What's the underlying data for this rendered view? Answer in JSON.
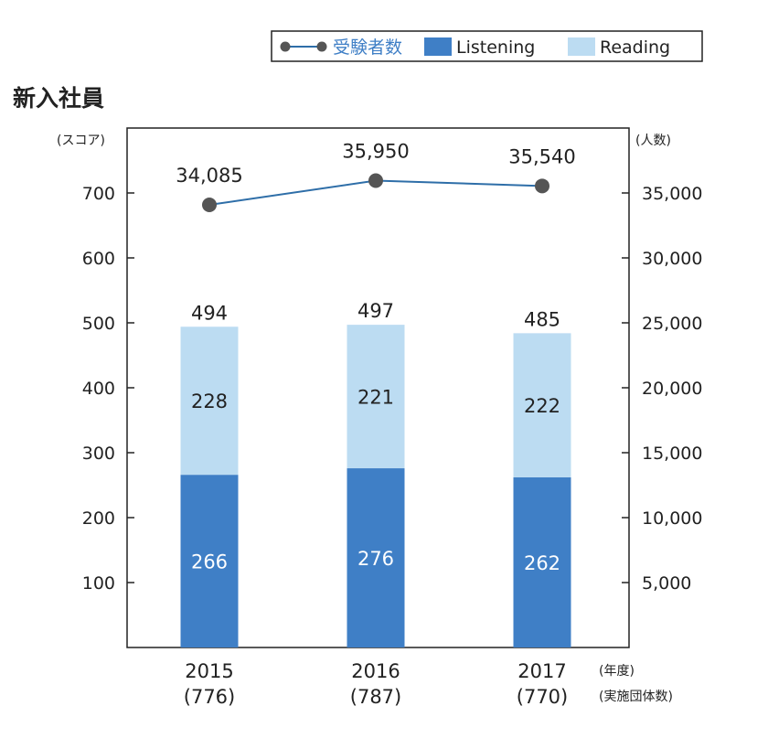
{
  "chart_data": {
    "type": "bar",
    "title": "新入社員",
    "left_axis_unit": "(スコア)",
    "right_axis_unit": "(人数)",
    "x_unit_line1": "(年度)",
    "x_unit_line2": "(実施団体数)",
    "categories": [
      "2015",
      "2016",
      "2017"
    ],
    "category_sublabels": [
      "(776)",
      "(787)",
      "(770)"
    ],
    "ylim": [
      0,
      800
    ],
    "y_ticks": [
      100,
      200,
      300,
      400,
      500,
      600,
      700
    ],
    "y_tick_labels": [
      "100",
      "200",
      "300",
      "400",
      "500",
      "600",
      "700"
    ],
    "y2lim": [
      0,
      40000
    ],
    "y2_ticks": [
      5000,
      10000,
      15000,
      20000,
      25000,
      30000,
      35000
    ],
    "y2_tick_labels": [
      "5,000",
      "10,000",
      "15,000",
      "20,000",
      "25,000",
      "30,000",
      "35,000"
    ],
    "stacked": true,
    "totals": [
      494,
      497,
      485
    ],
    "total_labels": [
      "494",
      "497",
      "485"
    ],
    "series": [
      {
        "name": "Listening",
        "kind": "bar",
        "axis": "left",
        "color": "#3f7fc6",
        "values": [
          266,
          276,
          262
        ],
        "labels": [
          "266",
          "276",
          "262"
        ]
      },
      {
        "name": "Reading",
        "kind": "bar",
        "axis": "left",
        "color": "#bcdcf2",
        "values": [
          228,
          221,
          222
        ],
        "labels": [
          "228",
          "221",
          "222"
        ]
      },
      {
        "name": "受験者数",
        "kind": "line",
        "axis": "right",
        "color": "#2e6ea8",
        "marker_color": "#555555",
        "values": [
          34085,
          35950,
          35540
        ],
        "labels": [
          "34,085",
          "35,950",
          "35,540"
        ]
      }
    ],
    "legend": {
      "placement": "top-right",
      "items": [
        {
          "label": "受験者数",
          "type": "line",
          "text_color": "#3f7fc6"
        },
        {
          "label": "Listening",
          "type": "box",
          "color": "#3f7fc6"
        },
        {
          "label": "Reading",
          "type": "box",
          "color": "#bcdcf2"
        }
      ]
    },
    "grid": false
  }
}
